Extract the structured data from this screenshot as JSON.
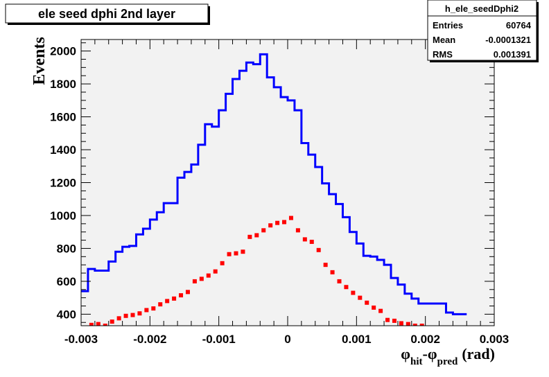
{
  "chart_data": {
    "type": "histogram",
    "title": "ele seed dphi 2nd layer",
    "xlabel": {
      "base": "φ",
      "sub1": "hit",
      "minus": "-",
      "sub2": "pred",
      "unit": "(rad)"
    },
    "ylabel": "Events",
    "xlim": [
      -0.003,
      0.003
    ],
    "ylim": [
      330,
      2070
    ],
    "x_ticks": [
      -0.003,
      -0.002,
      -0.001,
      0,
      0.001,
      0.002,
      0.003
    ],
    "x_tick_labels": [
      "-0.003",
      "-0.002",
      "-0.001",
      "0",
      "0.001",
      "0.002",
      "0.003"
    ],
    "y_ticks": [
      400,
      600,
      800,
      1000,
      1200,
      1400,
      1600,
      1800,
      2000
    ],
    "y_tick_labels": [
      "400",
      "600",
      "800",
      "1000",
      "1200",
      "1400",
      "1600",
      "1800",
      "2000"
    ],
    "grid": false,
    "colors": {
      "frame_bg": "#f2f2f2",
      "series1": "#0000ff",
      "series2": "#ff0000"
    },
    "series": [
      {
        "style": "step",
        "color": "#0000ff",
        "bin_edges_from": -0.003,
        "bin_width": 0.0001,
        "values": [
          540,
          675,
          665,
          665,
          720,
          780,
          810,
          815,
          885,
          920,
          975,
          1020,
          1075,
          1075,
          1230,
          1265,
          1310,
          1430,
          1555,
          1540,
          1640,
          1740,
          1830,
          1880,
          1930,
          1920,
          1980,
          1840,
          1780,
          1720,
          1700,
          1640,
          1440,
          1370,
          1295,
          1195,
          1130,
          1070,
          990,
          900,
          830,
          755,
          750,
          730,
          700,
          620,
          580,
          525,
          495,
          465,
          465,
          465,
          465,
          410,
          400,
          400
        ]
      },
      {
        "style": "markers",
        "color": "#ff0000",
        "x": [
          -0.00285,
          -0.00275,
          -0.00265,
          -0.00255,
          -0.00245,
          -0.00235,
          -0.00225,
          -0.00215,
          -0.00205,
          -0.00195,
          -0.00185,
          -0.00175,
          -0.00165,
          -0.00155,
          -0.00145,
          -0.00135,
          -0.00125,
          -0.00115,
          -0.00105,
          -0.00095,
          -0.00085,
          -0.00075,
          -0.00065,
          -0.00055,
          -0.00045,
          -0.00035,
          -0.00025,
          -0.00015,
          -5e-05,
          5e-05,
          0.00015,
          0.00025,
          0.00035,
          0.00045,
          0.00055,
          0.00065,
          0.00075,
          0.00085,
          0.00095,
          0.00105,
          0.00115,
          0.00125,
          0.00135,
          0.00145,
          0.00155,
          0.00165,
          0.00175,
          0.00185,
          0.00195
        ],
        "values": [
          335,
          340,
          330,
          355,
          375,
          390,
          395,
          405,
          425,
          435,
          460,
          480,
          495,
          515,
          535,
          600,
          615,
          635,
          660,
          710,
          765,
          770,
          780,
          870,
          880,
          910,
          940,
          955,
          960,
          985,
          910,
          855,
          840,
          790,
          700,
          655,
          600,
          565,
          530,
          500,
          470,
          440,
          420,
          365,
          360,
          345,
          340,
          330,
          330
        ]
      }
    ]
  },
  "stats_box": {
    "name": "h_ele_seedDphi2",
    "rows": [
      {
        "label": "Entries",
        "value": "60764"
      },
      {
        "label": "Mean",
        "value": "-0.0001321"
      },
      {
        "label": "RMS",
        "value": "0.001391"
      }
    ]
  }
}
